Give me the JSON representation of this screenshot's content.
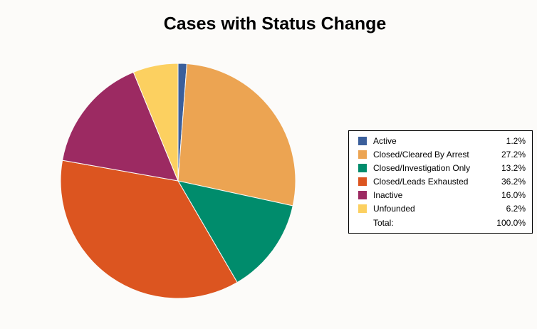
{
  "chart_data": {
    "type": "pie",
    "title": "Cases with Status Change",
    "categories": [
      "Active",
      "Closed/Cleared By Arrest",
      "Closed/Investigation Only",
      "Closed/Leads Exhausted",
      "Inactive",
      "Unfounded"
    ],
    "values": [
      1.2,
      27.2,
      13.2,
      36.2,
      16.0,
      6.2
    ],
    "value_labels": [
      "1.2%",
      "27.2%",
      "13.2%",
      "36.2%",
      "16.0%",
      "6.2%"
    ],
    "colors": [
      "#3b5f9b",
      "#eca452",
      "#008c6c",
      "#dc5520",
      "#9c2a62",
      "#fcd060"
    ],
    "total": {
      "label": "Total:",
      "value": 100.0,
      "value_label": "100.0%"
    },
    "legend": "right"
  }
}
